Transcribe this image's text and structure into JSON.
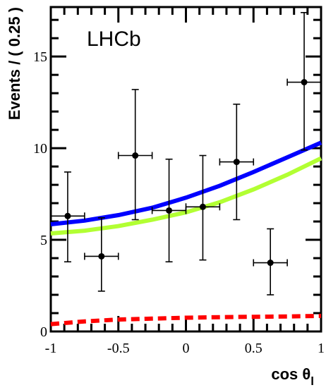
{
  "chart_data": {
    "type": "scatter",
    "title": "",
    "experiment_label": "LHCb",
    "xlabel": "cos θ",
    "xlabel_main": "cos θ",
    "xlabel_sub": "l",
    "ylabel": "Events / ( 0.25 )",
    "xlim": [
      -1,
      1
    ],
    "ylim": [
      0,
      17.7
    ],
    "x_ticks": [
      {
        "value": -1,
        "label": "-1"
      },
      {
        "value": -0.5,
        "label": "-0.5"
      },
      {
        "value": 0,
        "label": "0"
      },
      {
        "value": 0.5,
        "label": "0.5"
      },
      {
        "value": 1,
        "label": "1"
      }
    ],
    "y_ticks": [
      {
        "value": 0,
        "label": "0"
      },
      {
        "value": 5,
        "label": "5"
      },
      {
        "value": 10,
        "label": "10"
      },
      {
        "value": 15,
        "label": "15"
      }
    ],
    "points": [
      {
        "x": -0.875,
        "y": 6.3,
        "xerr": 0.125,
        "y_low": 3.8,
        "y_high": 8.7
      },
      {
        "x": -0.625,
        "y": 4.1,
        "xerr": 0.125,
        "y_low": 2.2,
        "y_high": 6.2
      },
      {
        "x": -0.375,
        "y": 9.6,
        "xerr": 0.125,
        "y_low": 6.1,
        "y_high": 13.2
      },
      {
        "x": -0.125,
        "y": 6.6,
        "xerr": 0.125,
        "y_low": 3.8,
        "y_high": 9.4
      },
      {
        "x": 0.125,
        "y": 6.8,
        "xerr": 0.125,
        "y_low": 3.9,
        "y_high": 9.6
      },
      {
        "x": 0.375,
        "y": 9.25,
        "xerr": 0.125,
        "y_low": 6.1,
        "y_high": 12.4
      },
      {
        "x": 0.625,
        "y": 3.75,
        "xerr": 0.125,
        "y_low": 2.0,
        "y_high": 5.6
      },
      {
        "x": 0.875,
        "y": 13.6,
        "xerr": 0.125,
        "y_low": 9.9,
        "y_high": 17.4
      }
    ],
    "curves": [
      {
        "style": "solid",
        "color": "#0000ff",
        "x": [
          -1,
          -0.75,
          -0.5,
          -0.25,
          0,
          0.25,
          0.5,
          0.75,
          1
        ],
        "y": [
          5.85,
          6.05,
          6.35,
          6.75,
          7.3,
          7.95,
          8.7,
          9.5,
          10.3
        ]
      },
      {
        "style": "solid",
        "color": "#b2ff33",
        "x": [
          -1,
          -0.75,
          -0.5,
          -0.25,
          0,
          0.25,
          0.5,
          0.75,
          1
        ],
        "y": [
          5.35,
          5.5,
          5.75,
          6.1,
          6.5,
          7.05,
          7.75,
          8.55,
          9.45
        ]
      },
      {
        "style": "dashed",
        "color": "#ff0000",
        "x": [
          -1,
          -0.75,
          -0.5,
          -0.25,
          0,
          0.25,
          0.5,
          0.75,
          1
        ],
        "y": [
          0.4,
          0.55,
          0.65,
          0.7,
          0.75,
          0.78,
          0.8,
          0.82,
          0.85
        ]
      }
    ],
    "grid": false,
    "legend": "none"
  }
}
